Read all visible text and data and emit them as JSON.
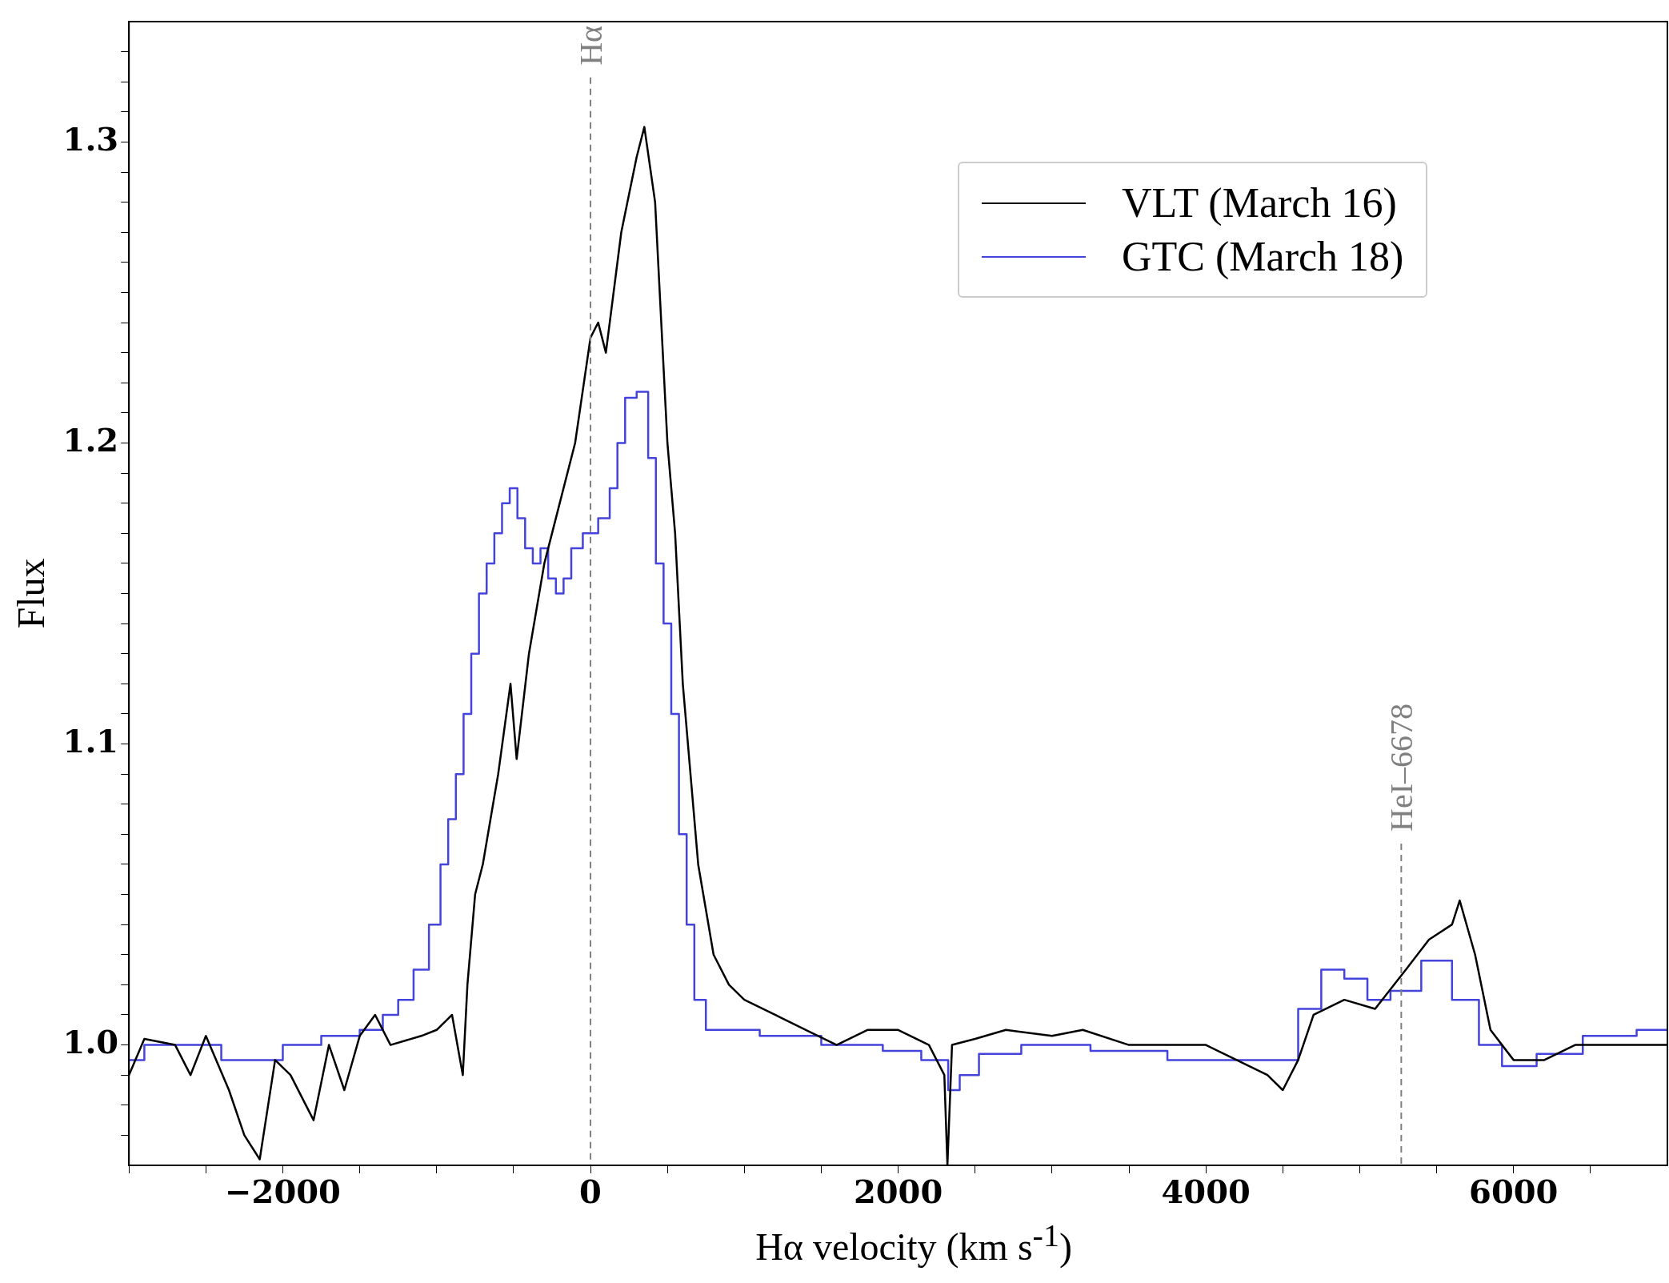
{
  "chart_data": {
    "type": "line",
    "xlabel": "Hα velocity (km s$^{-1}$)",
    "ylabel": "Flux",
    "xlim": [
      -3000,
      7000
    ],
    "ylim": [
      0.96,
      1.34
    ],
    "xticks": [
      {
        "value": -3000,
        "label": null
      },
      {
        "value": -2500,
        "label": null
      },
      {
        "value": -2000,
        "label": "−2000"
      },
      {
        "value": -1500,
        "label": null
      },
      {
        "value": -1000,
        "label": null
      },
      {
        "value": -500,
        "label": null
      },
      0,
      {
        "value": 500,
        "label": null
      },
      {
        "value": 1000,
        "label": null
      },
      {
        "value": 1500,
        "label": null
      },
      2000,
      {
        "value": 2500,
        "label": null
      },
      {
        "value": 3000,
        "label": null
      },
      {
        "value": 3500,
        "label": null
      },
      4000,
      {
        "value": 4500,
        "label": null
      },
      {
        "value": 5000,
        "label": null
      },
      {
        "value": 5500,
        "label": null
      },
      6000,
      {
        "value": 6500,
        "label": null
      }
    ],
    "yticks": [
      {
        "value": 0.97,
        "label": null
      },
      {
        "value": 0.98,
        "label": null
      },
      {
        "value": 0.99,
        "label": null
      },
      {
        "value": 1.0,
        "label": "1.0"
      },
      {
        "value": 1.01,
        "label": null
      },
      {
        "value": 1.02,
        "label": null
      },
      {
        "value": 1.03,
        "label": null
      },
      {
        "value": 1.04,
        "label": null
      },
      {
        "value": 1.05,
        "label": null
      },
      {
        "value": 1.06,
        "label": null
      },
      {
        "value": 1.07,
        "label": null
      },
      {
        "value": 1.08,
        "label": null
      },
      {
        "value": 1.09,
        "label": null
      },
      {
        "value": 1.1,
        "label": "1.1"
      },
      {
        "value": 1.11,
        "label": null
      },
      {
        "value": 1.12,
        "label": null
      },
      {
        "value": 1.13,
        "label": null
      },
      {
        "value": 1.14,
        "label": null
      },
      {
        "value": 1.15,
        "label": null
      },
      {
        "value": 1.16,
        "label": null
      },
      {
        "value": 1.17,
        "label": null
      },
      {
        "value": 1.18,
        "label": null
      },
      {
        "value": 1.19,
        "label": null
      },
      {
        "value": 1.2,
        "label": "1.2"
      },
      {
        "value": 1.21,
        "label": null
      },
      {
        "value": 1.22,
        "label": null
      },
      {
        "value": 1.23,
        "label": null
      },
      {
        "value": 1.24,
        "label": null
      },
      {
        "value": 1.25,
        "label": null
      },
      {
        "value": 1.26,
        "label": null
      },
      {
        "value": 1.27,
        "label": null
      },
      {
        "value": 1.28,
        "label": null
      },
      {
        "value": 1.29,
        "label": null
      },
      {
        "value": 1.3,
        "label": "1.3"
      },
      {
        "value": 1.31,
        "label": null
      },
      {
        "value": 1.32,
        "label": null
      },
      {
        "value": 1.33,
        "label": null
      }
    ],
    "grid": false,
    "legend": "top right",
    "marker": "none",
    "ref_lines": [
      {
        "axis": "x",
        "value": 0,
        "label": "Hα",
        "color": "#808080",
        "line_style": "dashed"
      },
      {
        "axis": "x",
        "value": 5270,
        "label": "HeI–6678",
        "color": "#808080",
        "line_style": "dashed"
      }
    ],
    "series": [
      {
        "name": "VLT (March 16)",
        "color": "#000000",
        "x": [
          -3000,
          -2900,
          -2700,
          -2600,
          -2500,
          -2350,
          -2250,
          -2150,
          -2050,
          -1950,
          -1800,
          -1700,
          -1600,
          -1500,
          -1400,
          -1300,
          -1100,
          -1000,
          -900,
          -830,
          -800,
          -750,
          -700,
          -600,
          -520,
          -480,
          -400,
          -300,
          -200,
          -100,
          0,
          50,
          100,
          200,
          300,
          350,
          420,
          500,
          550,
          600,
          700,
          800,
          900,
          1000,
          1200,
          1400,
          1600,
          1800,
          2000,
          2200,
          2300,
          2320,
          2350,
          2500,
          2700,
          3000,
          3200,
          3500,
          3800,
          4000,
          4200,
          4400,
          4500,
          4600,
          4700,
          4900,
          5100,
          5300,
          5450,
          5600,
          5650,
          5750,
          5850,
          6000,
          6200,
          6400,
          6600,
          6800,
          7000
        ],
        "values": [
          0.99,
          1.002,
          1.0,
          0.99,
          1.003,
          0.985,
          0.97,
          0.962,
          0.995,
          0.99,
          0.975,
          1.0,
          0.985,
          1.003,
          1.01,
          1.0,
          1.003,
          1.005,
          1.01,
          0.99,
          1.02,
          1.05,
          1.06,
          1.09,
          1.12,
          1.095,
          1.13,
          1.16,
          1.18,
          1.2,
          1.235,
          1.24,
          1.23,
          1.27,
          1.295,
          1.305,
          1.28,
          1.2,
          1.17,
          1.12,
          1.06,
          1.03,
          1.02,
          1.015,
          1.01,
          1.005,
          1.0,
          1.005,
          1.005,
          1.0,
          0.99,
          0.96,
          1.0,
          1.002,
          1.005,
          1.003,
          1.005,
          1.0,
          1.0,
          1.0,
          0.995,
          0.99,
          0.985,
          0.995,
          1.01,
          1.015,
          1.012,
          1.025,
          1.035,
          1.04,
          1.048,
          1.03,
          1.005,
          0.995,
          0.995,
          1.0,
          1.0,
          1.0,
          1.0
        ]
      },
      {
        "name": "GTC (March 18)",
        "type": "step",
        "color": "#4444dd",
        "x": [
          -3000,
          -2800,
          -2500,
          -2300,
          -2100,
          -1900,
          -1600,
          -1400,
          -1300,
          -1200,
          -1100,
          -1000,
          -950,
          -900,
          -850,
          -800,
          -750,
          -700,
          -650,
          -600,
          -550,
          -500,
          -450,
          -400,
          -350,
          -300,
          -250,
          -200,
          -150,
          -100,
          0,
          100,
          150,
          200,
          250,
          350,
          400,
          450,
          500,
          550,
          600,
          650,
          700,
          800,
          1000,
          1200,
          1400,
          1600,
          1800,
          2000,
          2300,
          2350,
          2450,
          2600,
          3000,
          3500,
          4000,
          4500,
          4700,
          4800,
          5000,
          5100,
          5300,
          5500,
          5700,
          5850,
          6000,
          6300,
          6600,
          7000
        ],
        "values": [
          0.995,
          1.0,
          1.0,
          0.995,
          0.995,
          1.0,
          1.003,
          1.005,
          1.01,
          1.015,
          1.025,
          1.04,
          1.06,
          1.075,
          1.09,
          1.11,
          1.13,
          1.15,
          1.16,
          1.17,
          1.18,
          1.185,
          1.175,
          1.165,
          1.16,
          1.165,
          1.155,
          1.15,
          1.155,
          1.165,
          1.17,
          1.175,
          1.185,
          1.2,
          1.215,
          1.217,
          1.195,
          1.16,
          1.14,
          1.11,
          1.07,
          1.04,
          1.015,
          1.005,
          1.005,
          1.003,
          1.003,
          1.0,
          1.0,
          0.998,
          0.995,
          0.985,
          0.99,
          0.997,
          1.0,
          0.998,
          0.995,
          0.995,
          1.012,
          1.025,
          1.022,
          1.015,
          1.018,
          1.028,
          1.015,
          1.0,
          0.993,
          0.997,
          1.003,
          1.005
        ]
      }
    ]
  }
}
